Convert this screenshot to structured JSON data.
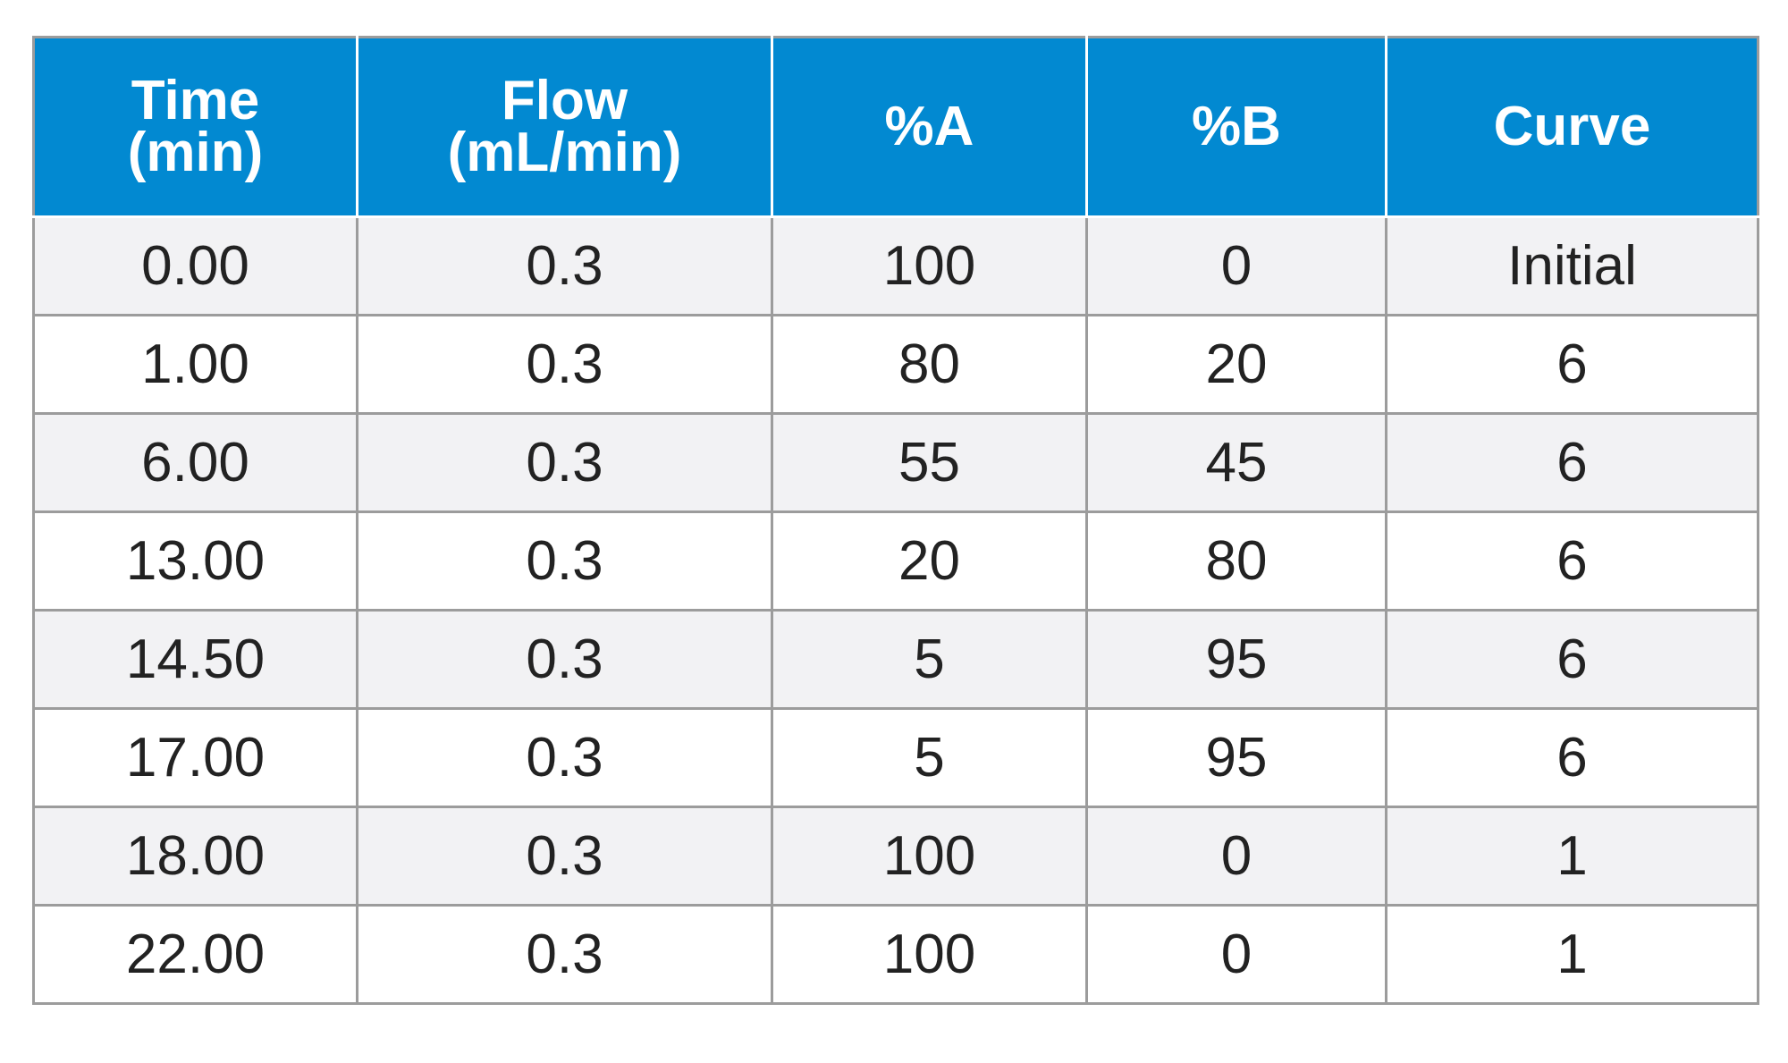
{
  "table": {
    "headers": [
      {
        "line1": "Time",
        "line2": "(min)"
      },
      {
        "line1": "Flow",
        "line2": "(mL/min)"
      },
      {
        "line1": "%A",
        "line2": ""
      },
      {
        "line1": "%B",
        "line2": ""
      },
      {
        "line1": "Curve",
        "line2": ""
      }
    ],
    "rows": [
      [
        "0.00",
        "0.3",
        "100",
        "0",
        "Initial"
      ],
      [
        "1.00",
        "0.3",
        "80",
        "20",
        "6"
      ],
      [
        "6.00",
        "0.3",
        "55",
        "45",
        "6"
      ],
      [
        "13.00",
        "0.3",
        "20",
        "80",
        "6"
      ],
      [
        "14.50",
        "0.3",
        "5",
        "95",
        "6"
      ],
      [
        "17.00",
        "0.3",
        "5",
        "95",
        "6"
      ],
      [
        "18.00",
        "0.3",
        "100",
        "0",
        "1"
      ],
      [
        "22.00",
        "0.3",
        "100",
        "0",
        "1"
      ]
    ]
  },
  "colors": {
    "header_background": "#0289d1",
    "header_text": "#ffffff",
    "row_alt_background": "#f2f2f4",
    "border": "#9c9c9c"
  }
}
